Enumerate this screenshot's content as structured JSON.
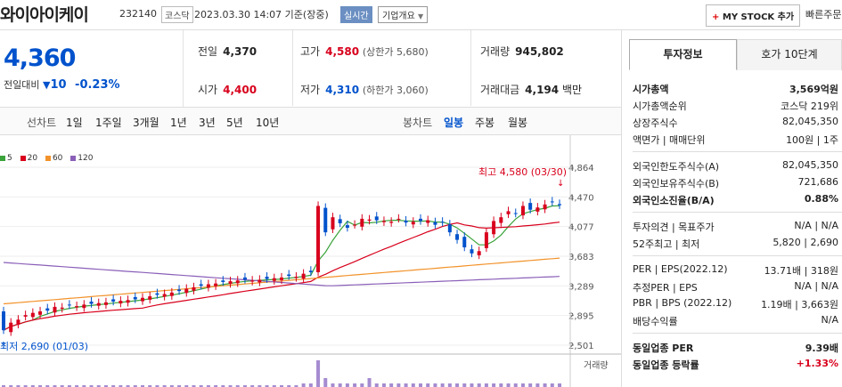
{
  "header": {
    "company_name": "와이아이케이",
    "code": "232140",
    "market": "코스닥",
    "datetime": "2023.03.30 14:07 기준(장중)",
    "live_badge": "실시간",
    "corp_overview": "기업개요",
    "mystock_button": "MY STOCK 추가",
    "fast_order": "빠른주문"
  },
  "summary": {
    "current_price": "4,360",
    "change_label": "전일대비",
    "change_value": "10",
    "change_pct": "-0.23%"
  },
  "quotes": {
    "prev_label": "전일",
    "prev_value": "4,370",
    "high_label": "고가",
    "high_value": "4,580",
    "upper_limit": "(상한가 5,680)",
    "volume_label": "거래량",
    "volume_value": "945,802",
    "open_label": "시가",
    "open_value": "4,400",
    "low_label": "저가",
    "low_value": "4,310",
    "lower_limit": "(하한가 3,060)",
    "amount_label": "거래대금",
    "amount_value": "4,194",
    "amount_unit": "백만"
  },
  "period_bar": {
    "line_label": "선차트",
    "line_periods": [
      "1일",
      "1주일",
      "3개월",
      "1년",
      "3년",
      "5년",
      "10년"
    ],
    "candle_label": "봉차트",
    "candle_periods": [
      "일봉",
      "주봉",
      "월봉"
    ],
    "selected": "일봉"
  },
  "chart_data": {
    "type": "candlestick",
    "legend": [
      {
        "name": "5",
        "color": "#3aa33a"
      },
      {
        "name": "20",
        "color": "#d8001c"
      },
      {
        "name": "60",
        "color": "#f2922a"
      },
      {
        "name": "120",
        "color": "#8a5fb8"
      }
    ],
    "y_ticks": [
      "4,864",
      "4,470",
      "4,077",
      "3,683",
      "3,289",
      "2,895",
      "2,501"
    ],
    "ylim": [
      2501,
      4864
    ],
    "high_annotation": "최고 4,580 (03/30)",
    "low_annotation": "최저 2,690 (01/03)",
    "volume_label": "거래량",
    "up_color": "#d8001c",
    "down_color": "#0052cc"
  },
  "invest_panel": {
    "tab_active": "투자정보",
    "tab_other": "호가 10단계",
    "rows1": [
      {
        "k": "시가총액",
        "v": "3,569억원"
      },
      {
        "k": "시가총액순위",
        "v": "코스닥 219위"
      },
      {
        "k": "상장주식수",
        "v": "82,045,350"
      },
      {
        "k": "액면가 | 매매단위",
        "v": "100원 | 1주"
      }
    ],
    "rows2": [
      {
        "k": "외국인한도주식수(A)",
        "v": "82,045,350"
      },
      {
        "k": "외국인보유주식수(B)",
        "v": "721,686"
      },
      {
        "k": "외국인소진율(B/A)",
        "v": "0.88%"
      }
    ],
    "rows3": [
      {
        "k": "투자의견 | 목표주가",
        "v": "N/A | N/A"
      },
      {
        "k": "52주최고 | 최저",
        "v": "5,820 | 2,690"
      }
    ],
    "rows4": [
      {
        "k": "PER | EPS(2022.12)",
        "v": "13.71배 | 318원"
      },
      {
        "k": "추정PER | EPS",
        "v": "N/A | N/A"
      },
      {
        "k": "PBR | BPS (2022.12)",
        "v": "1.19배 | 3,663원"
      },
      {
        "k": "배당수익률",
        "v": "N/A"
      }
    ],
    "rows5": [
      {
        "k": "동일업종 PER",
        "v": "9.39배"
      },
      {
        "k": "동일업종 등락률",
        "v": "+1.33%"
      }
    ]
  }
}
